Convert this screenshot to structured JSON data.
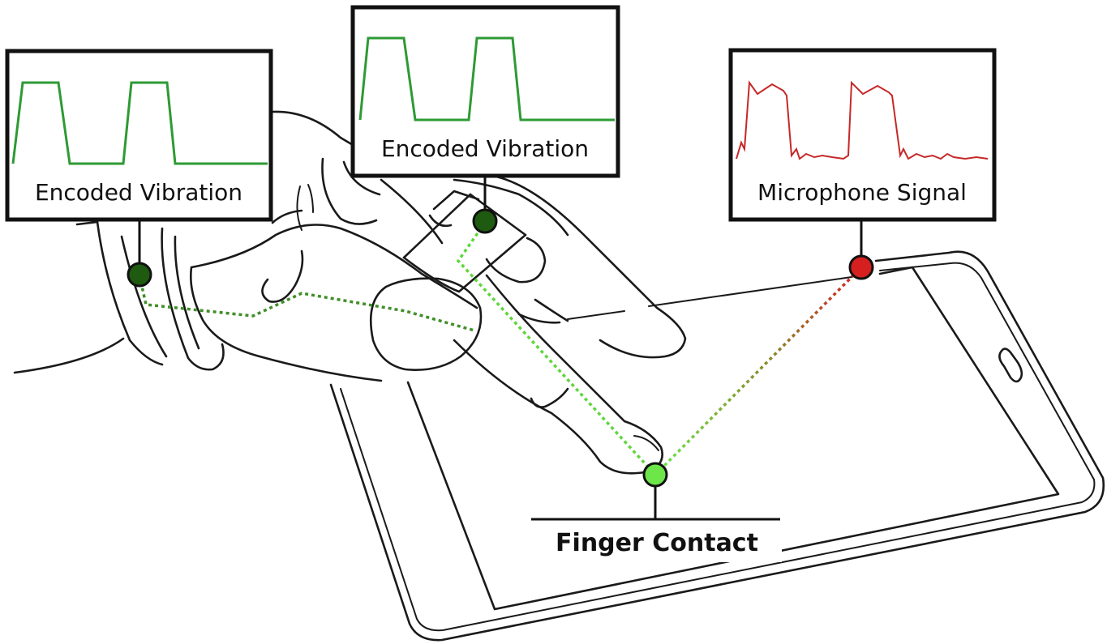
{
  "labels": {
    "vibration_left": "Encoded Vibration",
    "vibration_center": "Encoded Vibration",
    "microphone": "Microphone Signal",
    "finger_contact": "Finger Contact"
  },
  "colors": {
    "vibration_wave": "#2e9a34",
    "microphone_wave": "#c62828",
    "node_dark_green": "#1e5a10",
    "node_bright_green": "#6de64a",
    "node_red": "#d62020",
    "path_green": "#5fd63c",
    "path_dark_green": "#3f8f28",
    "path_red": "#c0392b"
  },
  "icons": {
    "device": "tablet-outline",
    "hand": "hand-outline-with-ring",
    "nodes": [
      "ring-sensor-node",
      "wrist-band-node",
      "touch-contact-node",
      "microphone-node"
    ]
  }
}
